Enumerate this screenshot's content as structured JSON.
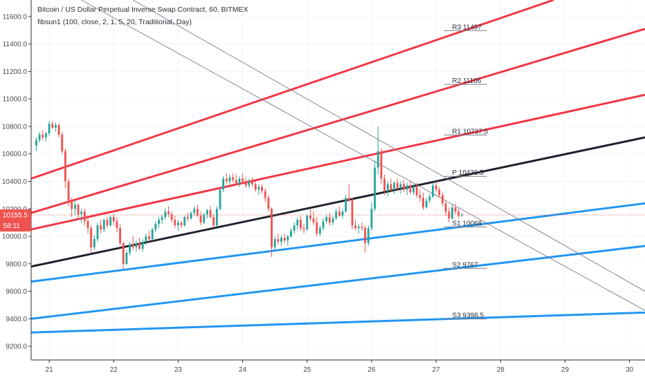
{
  "chart_data": {
    "type": "candlestick",
    "title": "Bitcoin / US Dollar Perpetual Inverse Swap Contract, 60, BITMEX",
    "indicator": "fibsun1 (100, close, 2, 1, 5, 20, Traditional, Day)",
    "ylim": [
      9100,
      11720
    ],
    "xlim": [
      20.72,
      30.24
    ],
    "y_ticks": [
      "11600.0",
      "11400.0",
      "11200.0",
      "11000.0",
      "10800.0",
      "10600.0",
      "10400.0",
      "10200.0",
      "10000.0",
      "9800.0",
      "9600.0",
      "9400.0",
      "9200.0"
    ],
    "y_tick_values": [
      11600,
      11400,
      11200,
      11000,
      10800,
      10600,
      10400,
      10200,
      10000,
      9800,
      9600,
      9400,
      9200
    ],
    "x_ticks": [
      "21",
      "22",
      "23",
      "24",
      "25",
      "26",
      "27",
      "28",
      "29",
      "30"
    ],
    "x_tick_values": [
      21,
      22,
      23,
      24,
      25,
      26,
      27,
      28,
      29,
      30
    ],
    "last_price": "10155.5",
    "last_price_value": 10155.5,
    "countdown": "58:11",
    "colors": {
      "up": "#26a69a",
      "down": "#ef5350",
      "resistance": "#f23645",
      "support": "#2196f3",
      "pivot": "#1e222d",
      "channel": "#787b86",
      "price_badge": "#ef5350"
    },
    "pivot_labels": [
      {
        "text": "R3 11497",
        "value": 11497,
        "x": 27.25
      },
      {
        "text": "R2 11106",
        "value": 11106,
        "x": 27.25
      },
      {
        "text": "R1 10737.5",
        "value": 10737.5,
        "x": 27.25
      },
      {
        "text": "P 10436.5",
        "value": 10436.5,
        "x": 27.25
      },
      {
        "text": "S1 10068",
        "value": 10068,
        "x": 27.25
      },
      {
        "text": "S2 9767",
        "value": 9767,
        "x": 27.25
      },
      {
        "text": "S3 9398.5",
        "value": 9398.5,
        "x": 27.25
      }
    ],
    "lines": [
      {
        "name": "R3",
        "role": "resistance",
        "x1": 20.72,
        "y1": 10420,
        "x2": 28.82,
        "y2": 11720
      },
      {
        "name": "R2",
        "role": "resistance",
        "x1": 20.72,
        "y1": 10170,
        "x2": 30.24,
        "y2": 11510
      },
      {
        "name": "R1",
        "role": "resistance",
        "x1": 20.72,
        "y1": 10050,
        "x2": 30.24,
        "y2": 11030
      },
      {
        "name": "P",
        "role": "pivot",
        "x1": 20.72,
        "y1": 9780,
        "x2": 30.24,
        "y2": 10720
      },
      {
        "name": "S1",
        "role": "support",
        "x1": 20.72,
        "y1": 9670,
        "x2": 30.24,
        "y2": 10240
      },
      {
        "name": "S2",
        "role": "support",
        "x1": 20.72,
        "y1": 9400,
        "x2": 30.24,
        "y2": 9930
      },
      {
        "name": "S3",
        "role": "support",
        "x1": 20.72,
        "y1": 9300,
        "x2": 30.24,
        "y2": 9445
      },
      {
        "name": "C1",
        "role": "channel",
        "x1": 21.5,
        "y1": 11720,
        "x2": 30.24,
        "y2": 9460
      },
      {
        "name": "C2",
        "role": "channel",
        "x1": 22.3,
        "y1": 11720,
        "x2": 30.24,
        "y2": 9600
      }
    ],
    "candles": [
      [
        20.8,
        10660,
        10720,
        10620,
        10700
      ],
      [
        20.85,
        10700,
        10760,
        10680,
        10740
      ],
      [
        20.9,
        10740,
        10770,
        10700,
        10720
      ],
      [
        20.95,
        10720,
        10760,
        10690,
        10750
      ],
      [
        21.0,
        10750,
        10840,
        10730,
        10820
      ],
      [
        21.05,
        10820,
        10840,
        10780,
        10790
      ],
      [
        21.1,
        10790,
        10830,
        10760,
        10810
      ],
      [
        21.15,
        10810,
        10820,
        10720,
        10740
      ],
      [
        21.2,
        10740,
        10760,
        10600,
        10620
      ],
      [
        21.25,
        10620,
        10640,
        10350,
        10400
      ],
      [
        21.3,
        10400,
        10420,
        10220,
        10260
      ],
      [
        21.35,
        10260,
        10280,
        10140,
        10200
      ],
      [
        21.4,
        10200,
        10260,
        10150,
        10230
      ],
      [
        21.45,
        10230,
        10240,
        10120,
        10160
      ],
      [
        21.5,
        10160,
        10200,
        10100,
        10180
      ],
      [
        21.55,
        10180,
        10200,
        10080,
        10110
      ],
      [
        21.6,
        10110,
        10130,
        10020,
        10060
      ],
      [
        21.65,
        10060,
        10080,
        9880,
        9920
      ],
      [
        21.7,
        9920,
        10010,
        9900,
        9980
      ],
      [
        21.75,
        9980,
        10100,
        9960,
        10080
      ],
      [
        21.8,
        10080,
        10120,
        10020,
        10050
      ],
      [
        21.85,
        10050,
        10130,
        10030,
        10120
      ],
      [
        21.9,
        10120,
        10140,
        10060,
        10080
      ],
      [
        21.95,
        10080,
        10150,
        10070,
        10140
      ],
      [
        22.0,
        10140,
        10160,
        10080,
        10110
      ],
      [
        22.05,
        10110,
        10140,
        10030,
        10060
      ],
      [
        22.1,
        10060,
        10090,
        9930,
        9950
      ],
      [
        22.15,
        9950,
        9960,
        9760,
        9800
      ],
      [
        22.2,
        9800,
        9900,
        9790,
        9880
      ],
      [
        22.25,
        9880,
        9960,
        9860,
        9940
      ],
      [
        22.3,
        9940,
        10000,
        9900,
        9920
      ],
      [
        22.35,
        9920,
        9970,
        9890,
        9950
      ],
      [
        22.4,
        9950,
        9990,
        9900,
        9910
      ],
      [
        22.45,
        9910,
        9980,
        9890,
        9960
      ],
      [
        22.5,
        9960,
        10020,
        9940,
        10000
      ],
      [
        22.55,
        10000,
        10040,
        9960,
        9980
      ],
      [
        22.6,
        9980,
        10060,
        9970,
        10050
      ],
      [
        22.65,
        10050,
        10110,
        10030,
        10090
      ],
      [
        22.7,
        10090,
        10140,
        10060,
        10120
      ],
      [
        22.75,
        10120,
        10160,
        10090,
        10140
      ],
      [
        22.8,
        10140,
        10200,
        10120,
        10180
      ],
      [
        22.85,
        10180,
        10220,
        10140,
        10160
      ],
      [
        22.9,
        10160,
        10180,
        10100,
        10120
      ],
      [
        22.95,
        10120,
        10150,
        10060,
        10080
      ],
      [
        23.0,
        10080,
        10120,
        10040,
        10100
      ],
      [
        23.05,
        10100,
        10110,
        10060,
        10080
      ],
      [
        23.1,
        10080,
        10150,
        10070,
        10140
      ],
      [
        23.15,
        10140,
        10170,
        10110,
        10130
      ],
      [
        23.2,
        10130,
        10180,
        10120,
        10170
      ],
      [
        23.25,
        10170,
        10220,
        10150,
        10200
      ],
      [
        23.3,
        10200,
        10230,
        10140,
        10150
      ],
      [
        23.35,
        10150,
        10180,
        10080,
        10100
      ],
      [
        23.4,
        10100,
        10170,
        10090,
        10160
      ],
      [
        23.45,
        10160,
        10200,
        10130,
        10190
      ],
      [
        23.5,
        10190,
        10220,
        10130,
        10140
      ],
      [
        23.55,
        10140,
        10160,
        10060,
        10080
      ],
      [
        23.6,
        10080,
        10220,
        10070,
        10200
      ],
      [
        23.65,
        10200,
        10360,
        10190,
        10340
      ],
      [
        23.7,
        10340,
        10440,
        10320,
        10420
      ],
      [
        23.75,
        10420,
        10460,
        10380,
        10400
      ],
      [
        23.8,
        10400,
        10450,
        10370,
        10430
      ],
      [
        23.85,
        10430,
        10460,
        10390,
        10410
      ],
      [
        23.9,
        10410,
        10450,
        10370,
        10380
      ],
      [
        23.95,
        10380,
        10440,
        10360,
        10420
      ],
      [
        24.0,
        10420,
        10460,
        10380,
        10400
      ],
      [
        24.05,
        10400,
        10430,
        10350,
        10370
      ],
      [
        24.1,
        10370,
        10420,
        10350,
        10400
      ],
      [
        24.15,
        10400,
        10430,
        10360,
        10380
      ],
      [
        24.2,
        10380,
        10400,
        10320,
        10340
      ],
      [
        24.25,
        10340,
        10380,
        10300,
        10360
      ],
      [
        24.3,
        10360,
        10380,
        10310,
        10330
      ],
      [
        24.35,
        10330,
        10350,
        10250,
        10280
      ],
      [
        24.4,
        10280,
        10300,
        10180,
        10200
      ],
      [
        24.45,
        10200,
        10210,
        9850,
        9920
      ],
      [
        24.5,
        9920,
        10000,
        9900,
        9980
      ],
      [
        24.55,
        9980,
        10020,
        9940,
        9960
      ],
      [
        24.6,
        9960,
        10010,
        9930,
        9990
      ],
      [
        24.65,
        9990,
        10020,
        9950,
        9970
      ],
      [
        24.7,
        9970,
        10010,
        9930,
        10000
      ],
      [
        24.75,
        10000,
        10060,
        9990,
        10040
      ],
      [
        24.8,
        10040,
        10100,
        10020,
        10080
      ],
      [
        24.85,
        10080,
        10140,
        10050,
        10120
      ],
      [
        24.9,
        10120,
        10150,
        10040,
        10060
      ],
      [
        24.95,
        10060,
        10090,
        10020,
        10050
      ],
      [
        25.0,
        10050,
        10160,
        10040,
        10150
      ],
      [
        25.05,
        10150,
        10200,
        10110,
        10130
      ],
      [
        25.1,
        10130,
        10180,
        10080,
        10100
      ],
      [
        25.15,
        10100,
        10140,
        10000,
        10020
      ],
      [
        25.2,
        10020,
        10080,
        10000,
        10060
      ],
      [
        25.25,
        10060,
        10130,
        10040,
        10110
      ],
      [
        25.3,
        10110,
        10160,
        10090,
        10140
      ],
      [
        25.35,
        10140,
        10170,
        10080,
        10100
      ],
      [
        25.4,
        10100,
        10150,
        10080,
        10130
      ],
      [
        25.45,
        10130,
        10200,
        10120,
        10180
      ],
      [
        25.5,
        10180,
        10220,
        10140,
        10150
      ],
      [
        25.55,
        10150,
        10200,
        10130,
        10180
      ],
      [
        25.6,
        10180,
        10300,
        10170,
        10280
      ],
      [
        25.65,
        10280,
        10380,
        10250,
        10260
      ],
      [
        25.7,
        10260,
        10280,
        10050,
        10080
      ],
      [
        25.75,
        10080,
        10120,
        10040,
        10060
      ],
      [
        25.8,
        10060,
        10090,
        10020,
        10070
      ],
      [
        25.85,
        10070,
        10100,
        10040,
        10060
      ],
      [
        25.9,
        10060,
        10080,
        9880,
        9950
      ],
      [
        25.95,
        9950,
        10080,
        9930,
        10060
      ],
      [
        26.0,
        10060,
        10250,
        10040,
        10200
      ],
      [
        26.05,
        10200,
        10550,
        10180,
        10500
      ],
      [
        26.1,
        10500,
        10800,
        10450,
        10620
      ],
      [
        26.15,
        10620,
        10640,
        10380,
        10420
      ],
      [
        26.2,
        10420,
        10450,
        10300,
        10330
      ],
      [
        26.25,
        10330,
        10400,
        10290,
        10380
      ],
      [
        26.3,
        10380,
        10420,
        10320,
        10340
      ],
      [
        26.35,
        10340,
        10400,
        10310,
        10390
      ],
      [
        26.4,
        10390,
        10420,
        10330,
        10350
      ],
      [
        26.45,
        10350,
        10400,
        10310,
        10380
      ],
      [
        26.5,
        10380,
        10410,
        10320,
        10340
      ],
      [
        26.55,
        10340,
        10390,
        10300,
        10370
      ],
      [
        26.6,
        10370,
        10400,
        10310,
        10320
      ],
      [
        26.65,
        10320,
        10380,
        10300,
        10360
      ],
      [
        26.7,
        10360,
        10390,
        10280,
        10300
      ],
      [
        26.75,
        10300,
        10340,
        10250,
        10280
      ],
      [
        26.8,
        10280,
        10320,
        10190,
        10210
      ],
      [
        26.85,
        10210,
        10280,
        10200,
        10260
      ],
      [
        26.9,
        10260,
        10310,
        10240,
        10290
      ],
      [
        26.95,
        10290,
        10390,
        10280,
        10370
      ],
      [
        27.0,
        10370,
        10400,
        10320,
        10340
      ],
      [
        27.05,
        10340,
        10360,
        10280,
        10300
      ],
      [
        27.1,
        10300,
        10320,
        10220,
        10240
      ],
      [
        27.15,
        10240,
        10260,
        10150,
        10180
      ],
      [
        27.2,
        10180,
        10210,
        10100,
        10130
      ],
      [
        27.25,
        10130,
        10230,
        10120,
        10210
      ],
      [
        27.3,
        10210,
        10240,
        10160,
        10180
      ],
      [
        27.35,
        10180,
        10200,
        10130,
        10150
      ],
      [
        27.4,
        10150,
        10170,
        10140,
        10155
      ]
    ]
  }
}
